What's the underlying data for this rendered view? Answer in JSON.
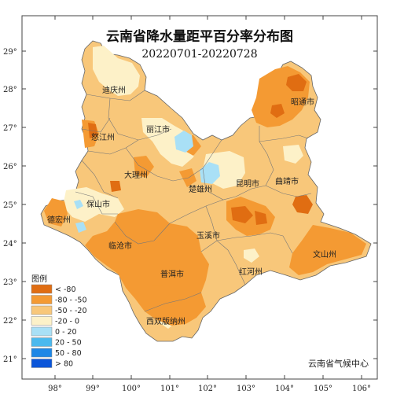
{
  "title": "云南省降水量距平百分率分布图",
  "date_range": "20220701-20220728",
  "source": "云南省气候中心",
  "legend": {
    "title": "图例",
    "items": [
      {
        "label": "< -80",
        "color": "#e06d12"
      },
      {
        "label": "-80 - -50",
        "color": "#f49a33"
      },
      {
        "label": "-50 - -20",
        "color": "#f8c77a"
      },
      {
        "label": "-20 - 0",
        "color": "#fdf1c8"
      },
      {
        "label": "0 - 20",
        "color": "#a9e0f6"
      },
      {
        "label": "20 - 50",
        "color": "#4bb9ee"
      },
      {
        "label": "50 - 80",
        "color": "#1e87e6"
      },
      {
        "label": "> 80",
        "color": "#0a55d9"
      }
    ]
  },
  "lon_ticks": [
    "98°",
    "99°",
    "100°",
    "101°",
    "102°",
    "103°",
    "104°",
    "105°",
    "106°"
  ],
  "lat_ticks": [
    "29°",
    "28°",
    "27°",
    "26°",
    "25°",
    "24°",
    "23°",
    "22°",
    "21°"
  ],
  "cities": [
    "迪庆州",
    "昭通市",
    "怒江州",
    "丽江市",
    "曲靖市",
    "大理州",
    "昆明市",
    "楚雄州",
    "保山市",
    "德宏州",
    "玉溪市",
    "临沧市",
    "文山州",
    "红河州",
    "普洱市",
    "西双版纳州"
  ]
}
